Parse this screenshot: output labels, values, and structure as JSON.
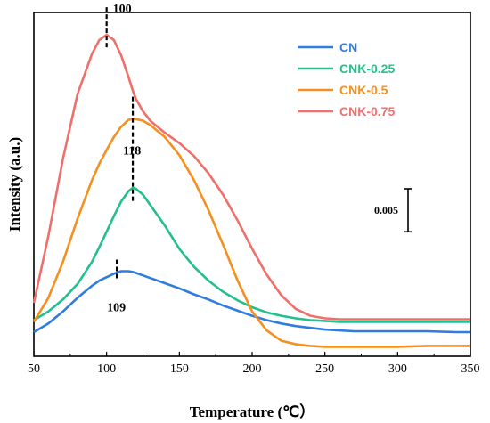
{
  "chart_data": {
    "type": "line",
    "xlabel": "Temperature (℃）",
    "ylabel": "Intensity (a.u.)",
    "xlim": [
      50,
      350
    ],
    "xticks": [
      50,
      100,
      150,
      200,
      250,
      300,
      350
    ],
    "x": [
      50,
      60,
      70,
      80,
      90,
      95,
      100,
      105,
      110,
      115,
      118,
      120,
      125,
      130,
      140,
      150,
      160,
      170,
      180,
      190,
      200,
      210,
      220,
      230,
      240,
      250,
      260,
      270,
      280,
      300,
      320,
      340,
      350
    ],
    "series": [
      {
        "name": "CN",
        "color": "#2f7de1",
        "values": [
          0.0028,
          0.0038,
          0.0052,
          0.0068,
          0.0082,
          0.0088,
          0.0092,
          0.0096,
          0.0099,
          0.0099,
          0.0098,
          0.0097,
          0.0094,
          0.0091,
          0.0085,
          0.0079,
          0.0072,
          0.0066,
          0.0059,
          0.0053,
          0.0047,
          0.0042,
          0.0038,
          0.0035,
          0.0033,
          0.0031,
          0.003,
          0.0029,
          0.0029,
          0.0029,
          0.0029,
          0.0028,
          0.0028
        ]
      },
      {
        "name": "CNK-0.25",
        "color": "#22c08e",
        "values": [
          0.0042,
          0.0052,
          0.0066,
          0.0084,
          0.011,
          0.0127,
          0.0145,
          0.0163,
          0.018,
          0.0192,
          0.0196,
          0.0195,
          0.0188,
          0.0176,
          0.0152,
          0.0125,
          0.0104,
          0.0088,
          0.0075,
          0.0065,
          0.0057,
          0.0051,
          0.0047,
          0.0044,
          0.0042,
          0.0041,
          0.004,
          0.004,
          0.004,
          0.004,
          0.004,
          0.004,
          0.004
        ]
      },
      {
        "name": "CNK-0.5",
        "color": "#f5901e",
        "values": [
          0.004,
          0.0068,
          0.011,
          0.016,
          0.0205,
          0.0224,
          0.024,
          0.0255,
          0.0267,
          0.0275,
          0.0276,
          0.0276,
          0.0274,
          0.0269,
          0.0255,
          0.0234,
          0.0205,
          0.017,
          0.013,
          0.0088,
          0.0052,
          0.003,
          0.0018,
          0.0014,
          0.0012,
          0.0011,
          0.0011,
          0.0011,
          0.0011,
          0.0011,
          0.0012,
          0.0012,
          0.0012
        ]
      },
      {
        "name": "CNK-0.75",
        "color": "#ef6f6c",
        "values": [
          0.0062,
          0.014,
          0.023,
          0.0305,
          0.0352,
          0.0368,
          0.0374,
          0.0368,
          0.035,
          0.0325,
          0.0309,
          0.03,
          0.0285,
          0.0274,
          0.026,
          0.0248,
          0.0233,
          0.0213,
          0.0188,
          0.0158,
          0.0125,
          0.0095,
          0.0071,
          0.0055,
          0.0047,
          0.0044,
          0.0043,
          0.0043,
          0.0043,
          0.0043,
          0.0043,
          0.0043,
          0.0043
        ]
      }
    ],
    "annotations": [
      {
        "text": "100",
        "x": 100,
        "y": 0.0374,
        "series": "CNK-0.75"
      },
      {
        "text": "118",
        "x": 118,
        "y": 0.0276,
        "series": "CNK-0.5"
      },
      {
        "text": "109",
        "x": 107,
        "y": 0.0099,
        "series": "CN"
      }
    ],
    "scale_bar": {
      "label": "0.005",
      "value": 0.005
    },
    "legend": "top-right",
    "grid": false
  }
}
